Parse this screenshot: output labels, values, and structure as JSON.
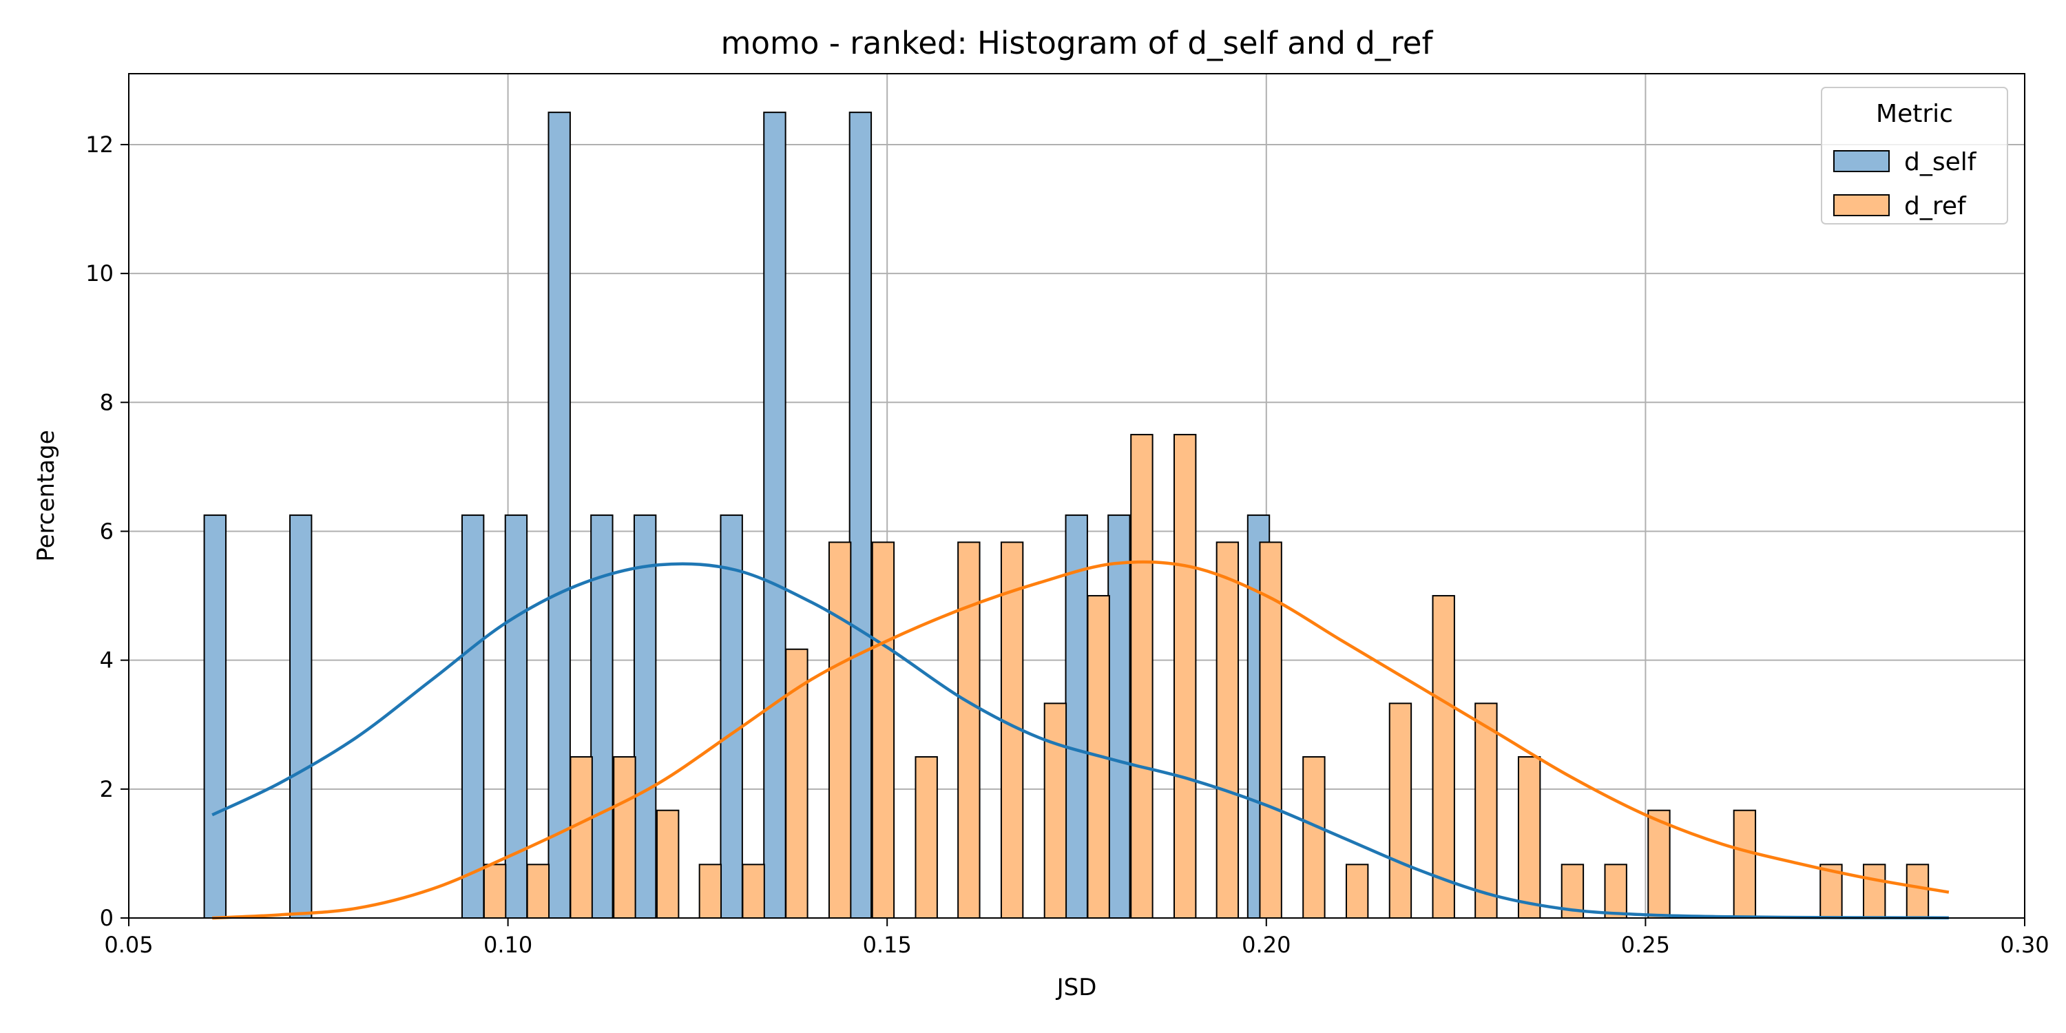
{
  "chart_data": {
    "type": "bar",
    "title": "momo - ranked: Histogram of d_self and d_ref",
    "xlabel": "JSD",
    "ylabel": "Percentage",
    "xlim": [
      0.05,
      0.3
    ],
    "ylim": [
      0,
      13.1
    ],
    "x_ticks": [
      0.05,
      0.1,
      0.15,
      0.2,
      0.25,
      0.3
    ],
    "x_tick_labels": [
      "0.05",
      "0.10",
      "0.15",
      "0.20",
      "0.25",
      "0.30"
    ],
    "y_ticks": [
      0,
      2,
      4,
      6,
      8,
      10,
      12
    ],
    "y_tick_labels": [
      "0",
      "2",
      "4",
      "6",
      "8",
      "10",
      "12"
    ],
    "grid": true,
    "legend": {
      "title": "Metric",
      "placement": "top-right",
      "entries": [
        "d_self",
        "d_ref"
      ]
    },
    "bin_width": 0.0057,
    "series": [
      {
        "name": "d_self",
        "color": "#1f77b4",
        "fill": "#8fb8da",
        "x": [
          0.0628,
          0.0741,
          0.0968,
          0.1025,
          0.1082,
          0.1138,
          0.1195,
          0.1309,
          0.1366,
          0.1479,
          0.1764,
          0.182,
          0.2004
        ],
        "values": [
          6.25,
          6.25,
          6.25,
          6.25,
          12.5,
          6.25,
          6.25,
          6.25,
          12.5,
          12.5,
          6.25,
          6.25,
          6.25
        ],
        "kde_x": [
          0.061,
          0.07,
          0.08,
          0.09,
          0.1,
          0.11,
          0.12,
          0.13,
          0.14,
          0.15,
          0.16,
          0.17,
          0.18,
          0.19,
          0.2,
          0.21,
          0.22,
          0.23,
          0.24,
          0.25,
          0.26,
          0.27,
          0.28,
          0.29
        ],
        "kde_y": [
          1.6,
          2.1,
          2.8,
          3.7,
          4.6,
          5.2,
          5.48,
          5.4,
          4.9,
          4.2,
          3.4,
          2.8,
          2.45,
          2.15,
          1.75,
          1.25,
          0.75,
          0.35,
          0.13,
          0.05,
          0.02,
          0.01,
          0.005,
          0.003
        ]
      },
      {
        "name": "d_ref",
        "color": "#ff7f0e",
        "fill": "#ffbf86",
        "x": [
          0.0997,
          0.1054,
          0.1111,
          0.1168,
          0.1225,
          0.1281,
          0.1338,
          0.1395,
          0.1452,
          0.1509,
          0.1566,
          0.1622,
          0.1679,
          0.1736,
          0.1793,
          0.185,
          0.1907,
          0.1963,
          0.202,
          0.2077,
          0.2134,
          0.2191,
          0.2248,
          0.2304,
          0.2361,
          0.2418,
          0.2475,
          0.2532,
          0.2645,
          0.2759,
          0.2816,
          0.2873
        ],
        "values": [
          0.83,
          0.83,
          2.5,
          2.5,
          1.67,
          0.83,
          0.83,
          4.17,
          5.83,
          5.83,
          2.5,
          5.83,
          5.83,
          3.33,
          5.0,
          7.5,
          7.5,
          5.83,
          5.83,
          2.5,
          0.83,
          3.33,
          5.0,
          3.33,
          2.5,
          0.83,
          0.83,
          1.67,
          1.67,
          0.83,
          0.83,
          0.83
        ],
        "kde_x": [
          0.061,
          0.07,
          0.08,
          0.09,
          0.1,
          0.11,
          0.12,
          0.13,
          0.14,
          0.15,
          0.16,
          0.17,
          0.18,
          0.19,
          0.2,
          0.21,
          0.22,
          0.23,
          0.24,
          0.25,
          0.26,
          0.27,
          0.28,
          0.29
        ],
        "kde_y": [
          0.0,
          0.05,
          0.15,
          0.45,
          0.95,
          1.5,
          2.1,
          2.9,
          3.7,
          4.3,
          4.8,
          5.2,
          5.5,
          5.45,
          5.0,
          4.3,
          3.6,
          2.9,
          2.2,
          1.6,
          1.15,
          0.85,
          0.6,
          0.4
        ]
      }
    ]
  }
}
